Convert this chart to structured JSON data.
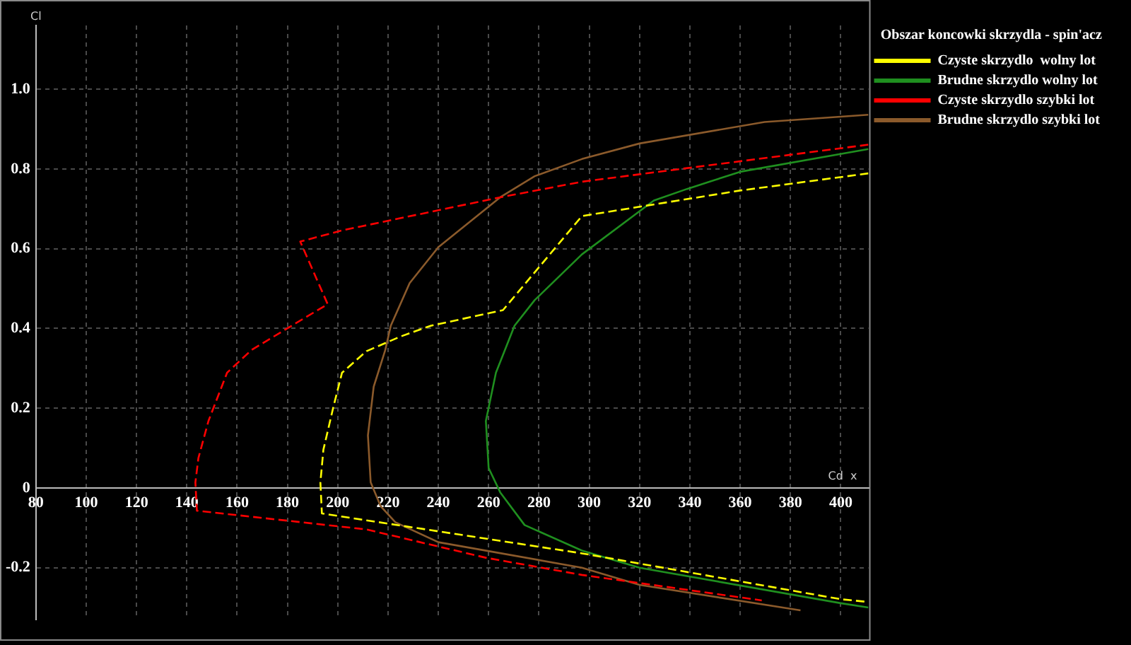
{
  "chart_data": {
    "type": "line",
    "xlabel": "Cd  x",
    "ylabel": "Cl",
    "legend_title": "Obszar koncowki skrzydla - spin'acz",
    "legend": "right",
    "grid": true,
    "marker": "none",
    "xlim": [
      80,
      411
    ],
    "ylim": [
      -0.33,
      1.16
    ],
    "xticks": [
      80,
      100,
      120,
      140,
      160,
      180,
      200,
      220,
      240,
      260,
      280,
      300,
      320,
      340,
      360,
      380,
      400
    ],
    "yticks": [
      -0.2,
      0,
      0.2,
      0.4,
      0.6,
      0.8,
      {
        "value": 1,
        "label": "1.0"
      }
    ],
    "series": [
      {
        "name": "Czyste skrzydlo  wolny lot",
        "color": "#ffff00",
        "line_style": "dashed",
        "x": [
          411,
          360,
          297.1,
          265.7,
          237.1,
          224.6,
          211.4,
          201.7,
          198.3,
          194.3,
          193.1,
          193.7,
          297.1,
          400,
          411
        ],
        "values": [
          0.789,
          0.746,
          0.682,
          0.446,
          0.407,
          0.379,
          0.343,
          0.289,
          0.204,
          0.096,
          0.014,
          -0.064,
          -0.164,
          -0.279,
          -0.286
        ]
      },
      {
        "name": "Brudne skrzydlo wolny lot",
        "color": "#1f8f1f",
        "line_style": "solid",
        "x": [
          411,
          360,
          338.9,
          325.7,
          297.1,
          278.3,
          270.3,
          262.9,
          258.9,
          260,
          264.6,
          274.3,
          297.1,
          320,
          400,
          411
        ],
        "values": [
          0.85,
          0.793,
          0.75,
          0.721,
          0.586,
          0.471,
          0.407,
          0.289,
          0.168,
          0.05,
          -0.011,
          -0.093,
          -0.157,
          -0.2,
          -0.289,
          -0.3
        ]
      },
      {
        "name": "Czyste skrzydlo szybki lot",
        "color": "#ff0000",
        "line_style": "dashed",
        "x": [
          411,
          297,
          264.6,
          201.7,
          185.1,
          196,
          181.7,
          165.7,
          156,
          148.6,
          144.6,
          143.4,
          144,
          211.4,
          258.9,
          297,
          368.6
        ],
        "values": [
          0.861,
          0.768,
          0.729,
          0.646,
          0.618,
          0.461,
          0.407,
          0.346,
          0.289,
          0.168,
          0.075,
          0.014,
          -0.057,
          -0.104,
          -0.175,
          -0.218,
          -0.282
        ]
      },
      {
        "name": "Brudne skrzydlo szybki lot",
        "color": "#8b5a2b",
        "line_style": "solid",
        "x": [
          411,
          369.7,
          320,
          297.1,
          278.3,
          264.6,
          240,
          228.6,
          221.1,
          218.9,
          214.3,
          212,
          213.1,
          217.1,
          222.9,
          240,
          297.1,
          320,
          384
        ],
        "values": [
          0.936,
          0.918,
          0.864,
          0.825,
          0.782,
          0.729,
          0.604,
          0.514,
          0.407,
          0.346,
          0.254,
          0.132,
          0.014,
          -0.046,
          -0.086,
          -0.136,
          -0.2,
          -0.243,
          -0.307
        ]
      }
    ]
  }
}
